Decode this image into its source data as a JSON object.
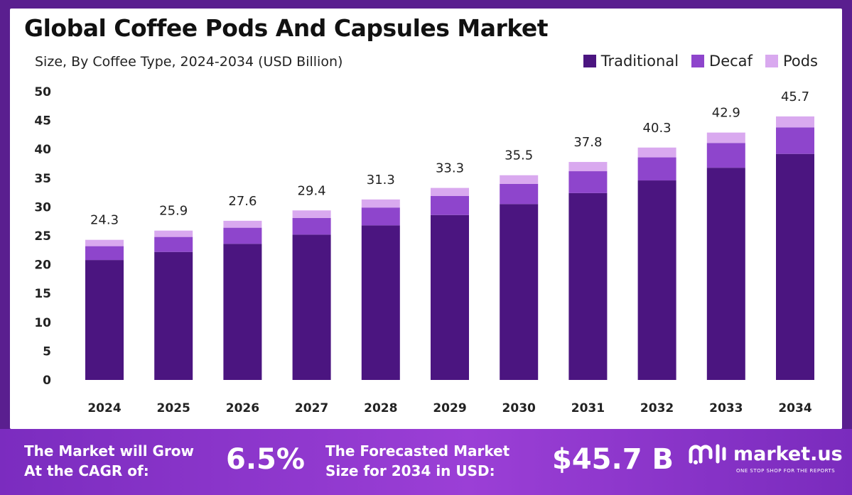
{
  "title": "Global Coffee Pods And Capsules Market",
  "subtitle": "Size, By Coffee Type, 2024-2034 (USD Billion)",
  "legend": [
    {
      "label": "Traditional",
      "color": "#4b1580"
    },
    {
      "label": "Decaf",
      "color": "#8e45cc"
    },
    {
      "label": "Pods",
      "color": "#d9a9ef"
    }
  ],
  "chart_data": {
    "type": "bar",
    "stacked": true,
    "categories": [
      "2024",
      "2025",
      "2026",
      "2027",
      "2028",
      "2029",
      "2030",
      "2031",
      "2032",
      "2033",
      "2034"
    ],
    "series": [
      {
        "name": "Traditional",
        "values": [
          20.8,
          22.2,
          23.6,
          25.2,
          26.8,
          28.6,
          30.5,
          32.4,
          34.6,
          36.8,
          39.2
        ]
      },
      {
        "name": "Decaf",
        "values": [
          2.4,
          2.6,
          2.8,
          2.9,
          3.1,
          3.3,
          3.5,
          3.8,
          4.0,
          4.3,
          4.6
        ]
      },
      {
        "name": "Pods",
        "values": [
          1.1,
          1.1,
          1.2,
          1.3,
          1.4,
          1.4,
          1.5,
          1.6,
          1.7,
          1.8,
          1.9
        ]
      }
    ],
    "totals": [
      "24.3",
      "25.9",
      "27.6",
      "29.4",
      "31.3",
      "33.3",
      "35.5",
      "37.8",
      "40.3",
      "42.9",
      "45.7"
    ],
    "yticks": [
      "0",
      "5",
      "10",
      "15",
      "20",
      "25",
      "30",
      "35",
      "40",
      "45",
      "50"
    ],
    "ylim": [
      0,
      50
    ],
    "grid": false,
    "legend_position": "top-right"
  },
  "footer": {
    "cagr_label_line1": "The Market will Grow",
    "cagr_label_line2": "At the CAGR of:",
    "cagr_value": "6.5%",
    "forecast_label_line1": "The Forecasted Market",
    "forecast_label_line2": "Size for 2034 in USD:",
    "forecast_value": "$45.7 B",
    "brand_name": "market.us",
    "brand_tagline": "ONE STOP SHOP FOR THE REPORTS"
  }
}
